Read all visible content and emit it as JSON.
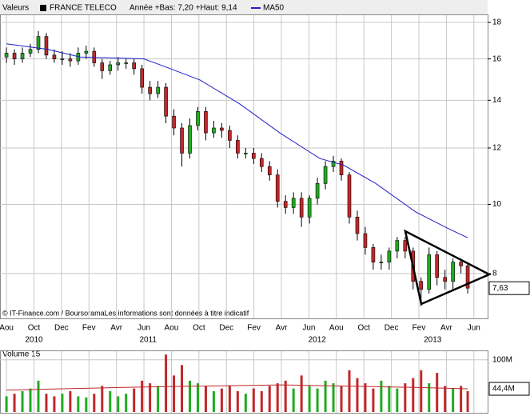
{
  "chart_data": {
    "type": "candlestick",
    "header_label": "Valeurs",
    "title": "FRANCE TELECO",
    "subtitle": "Année +Bas: 7,20 +Haut: 9,14",
    "footer": "© IT-Finance.com / BoursoramaLes informations sont données à titre indicatif",
    "log_scale": true,
    "grid": true,
    "up_color": "#22aa22",
    "down_color": "#c0282a",
    "x": [
      0,
      0.58,
      1.16,
      1.74,
      2.32,
      2.9,
      3.48,
      4.06,
      4.64,
      5.22,
      5.8,
      6.38,
      6.96,
      7.54,
      8.12,
      8.7,
      9.28,
      9.86,
      10.44,
      11.02,
      11.6,
      12.18,
      12.76,
      13.34,
      13.92,
      14.5,
      15.08,
      15.66,
      16.24,
      16.82,
      17.4,
      17.98,
      18.56,
      19.14,
      19.72,
      20.3,
      20.88,
      21.46,
      22.04,
      22.62,
      23.2,
      23.78,
      24.36,
      24.94,
      25.52,
      26.1,
      26.68,
      27.26,
      27.84,
      28.42,
      29.0,
      29.58,
      30.16,
      30.74,
      31.32,
      31.9,
      32.48,
      33.06,
      33.55
    ],
    "open": [
      16.1,
      16.3,
      16.0,
      16.3,
      16.5,
      17.2,
      16.2,
      16.0,
      16.0,
      15.9,
      16.3,
      16.4,
      15.8,
      15.4,
      15.7,
      15.8,
      15.8,
      15.5,
      14.6,
      14.3,
      14.6,
      13.3,
      12.8,
      11.8,
      12.9,
      13.5,
      12.6,
      12.8,
      12.7,
      12.3,
      11.8,
      11.8,
      11.6,
      11.3,
      11.0,
      10.1,
      9.9,
      10.2,
      9.6,
      10.2,
      10.7,
      11.3,
      11.5,
      11.0,
      9.6,
      9.1,
      8.7,
      8.3,
      8.3,
      8.6,
      8.9,
      8.6,
      7.8,
      7.6,
      8.5,
      7.9,
      7.8,
      8.3,
      8.2
    ],
    "high": [
      16.6,
      16.5,
      16.6,
      16.8,
      17.5,
      17.4,
      16.5,
      16.4,
      16.3,
      16.6,
      16.7,
      16.6,
      16.0,
      15.9,
      16.1,
      16.0,
      16.0,
      15.7,
      14.9,
      14.9,
      14.8,
      13.6,
      13.0,
      13.2,
      13.7,
      13.7,
      13.1,
      13.0,
      12.9,
      12.5,
      12.0,
      12.0,
      11.8,
      11.5,
      11.2,
      10.3,
      10.4,
      10.4,
      10.3,
      10.9,
      11.5,
      11.7,
      11.6,
      11.1,
      9.8,
      9.3,
      8.8,
      8.5,
      8.7,
      9.0,
      9.0,
      8.7,
      7.9,
      8.7,
      8.6,
      8.1,
      8.4,
      8.4,
      8.3
    ],
    "low": [
      15.8,
      15.7,
      15.8,
      16.1,
      16.3,
      16.0,
      15.8,
      15.7,
      15.6,
      15.7,
      16.0,
      15.6,
      15.0,
      15.2,
      15.4,
      15.5,
      15.2,
      14.3,
      14.0,
      14.1,
      13.0,
      12.5,
      11.3,
      11.6,
      12.7,
      12.3,
      12.4,
      12.4,
      12.0,
      11.6,
      11.6,
      11.4,
      11.1,
      10.8,
      9.9,
      9.7,
      9.7,
      9.3,
      9.4,
      10.0,
      10.5,
      11.1,
      10.8,
      9.4,
      8.9,
      8.5,
      8.1,
      8.1,
      8.1,
      8.4,
      8.4,
      7.6,
      7.2,
      7.5,
      7.7,
      7.6,
      7.6,
      8.0,
      7.5
    ],
    "close": [
      16.3,
      16.0,
      16.3,
      16.5,
      17.2,
      16.2,
      16.0,
      16.0,
      15.9,
      16.3,
      16.4,
      15.8,
      15.4,
      15.7,
      15.8,
      15.8,
      15.5,
      14.6,
      14.3,
      14.6,
      13.3,
      12.8,
      11.8,
      12.9,
      13.5,
      12.6,
      12.8,
      12.7,
      12.3,
      11.8,
      11.8,
      11.6,
      11.3,
      11.0,
      10.1,
      9.9,
      10.2,
      9.6,
      10.2,
      10.7,
      11.3,
      11.5,
      11.0,
      9.6,
      9.1,
      8.7,
      8.3,
      8.3,
      8.6,
      8.9,
      8.6,
      7.8,
      7.6,
      8.5,
      7.9,
      7.8,
      8.3,
      8.2,
      7.63
    ],
    "ma": {
      "name": "MA50",
      "color": "#1f1fc8",
      "x": [
        0,
        3.02,
        5.35,
        10,
        11.16,
        14.07,
        16.98,
        19.88,
        22.79,
        24.53,
        26.86,
        29.77,
        32.09,
        33.55
      ],
      "values": [
        16.8,
        16.5,
        16.1,
        16.0,
        15.7,
        14.95,
        13.83,
        12.6,
        11.6,
        11.35,
        10.7,
        9.76,
        9.26,
        8.98
      ]
    },
    "last_label": {
      "value": 7.63,
      "label": "7,63"
    },
    "xlim": [
      -0.47,
      35.0
    ],
    "ylim": [
      6.92,
      18.86
    ],
    "yticks": [
      8,
      10,
      12,
      14,
      16,
      18
    ],
    "xticks": [
      {
        "value": 0,
        "label": "Aou"
      },
      {
        "value": 2,
        "label": "Oct"
      },
      {
        "value": 4,
        "label": "Dec"
      },
      {
        "value": 6,
        "label": "Fev"
      },
      {
        "value": 8,
        "label": "Avr"
      },
      {
        "value": 10,
        "label": "Jun"
      },
      {
        "value": 12,
        "label": "Aou"
      },
      {
        "value": 14,
        "label": "Oct"
      },
      {
        "value": 16,
        "label": "Dec"
      },
      {
        "value": 18,
        "label": "Fev"
      },
      {
        "value": 20,
        "label": "Avr"
      },
      {
        "value": 22,
        "label": "Jun"
      },
      {
        "value": 24,
        "label": "Aou"
      },
      {
        "value": 26,
        "label": "Oct"
      },
      {
        "value": 28,
        "label": "Dec"
      },
      {
        "value": 30,
        "label": "Fev"
      },
      {
        "value": 32,
        "label": "Avr"
      },
      {
        "value": 34,
        "label": "Jun"
      }
    ],
    "year_labels": [
      {
        "value": 2,
        "label": "2010"
      },
      {
        "value": 10.3,
        "label": "2011"
      },
      {
        "value": 22.6,
        "label": "2012"
      },
      {
        "value": 31,
        "label": "2013"
      }
    ],
    "volume": {
      "title": "Volume 15",
      "values": [
        30,
        35,
        40,
        45,
        60,
        35,
        30,
        35,
        40,
        30,
        28,
        35,
        50,
        40,
        30,
        35,
        45,
        60,
        55,
        50,
        110,
        70,
        90,
        60,
        55,
        50,
        40,
        45,
        50,
        40,
        35,
        45,
        40,
        50,
        55,
        60,
        45,
        70,
        50,
        45,
        60,
        55,
        50,
        80,
        65,
        55,
        45,
        60,
        50,
        45,
        55,
        65,
        80,
        55,
        75,
        50,
        45,
        50,
        40
      ],
      "ylim": [
        0,
        115
      ],
      "yticks": [
        {
          "value": 100,
          "label": "100M"
        }
      ],
      "ma_color": "#c0282a",
      "ma_x": [
        0,
        10,
        20,
        30,
        33.55
      ],
      "ma_values": [
        42,
        48,
        52,
        47,
        44.4
      ],
      "last_label": {
        "value": 44.4,
        "label": "44,4M"
      }
    }
  }
}
